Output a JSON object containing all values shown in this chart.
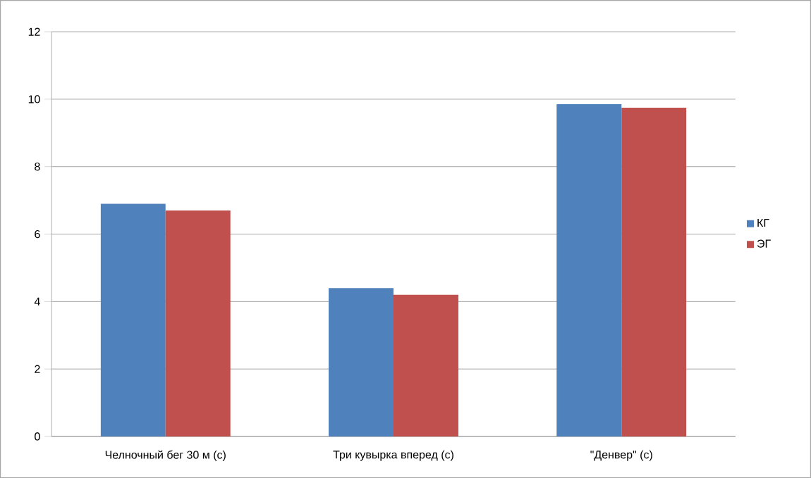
{
  "chart_data": {
    "type": "bar",
    "categories": [
      "Челночный бег 30 м (с)",
      "Три кувырка вперед (с)",
      "\"Денвер\" (с)"
    ],
    "series": [
      {
        "name": "КГ",
        "color": "#4f81bd",
        "values": [
          6.9,
          4.4,
          9.85
        ]
      },
      {
        "name": "ЭГ",
        "color": "#c0504d",
        "values": [
          6.7,
          4.2,
          9.75
        ]
      }
    ],
    "ylim": [
      0,
      12
    ],
    "yticks": [
      0,
      2,
      4,
      6,
      8,
      10,
      12
    ],
    "grid": "y",
    "legend": "right"
  }
}
